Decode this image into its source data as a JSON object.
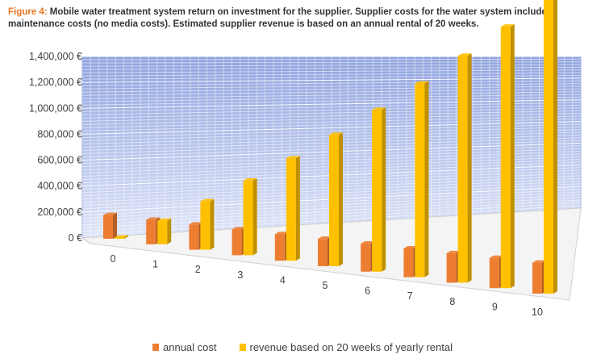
{
  "caption": {
    "figure_label": "Figure 4:",
    "text": "Mobile water treatment system return on investment for the supplier. Supplier costs for the water system include maintenance costs (no media costs). Estimated supplier revenue is based on an annual rental of 20 weeks."
  },
  "chart_data": {
    "type": "bar",
    "categories": [
      "0",
      "1",
      "2",
      "3",
      "4",
      "5",
      "6",
      "7",
      "8",
      "9",
      "10"
    ],
    "series": [
      {
        "name": "annual cost",
        "color": "#ed7d31",
        "values": [
          130000,
          130000,
          130000,
          130000,
          130000,
          130000,
          130000,
          130000,
          130000,
          130000,
          130000
        ]
      },
      {
        "name": "revenue based on 20 weeks of yearly rental",
        "color": "#ffc000",
        "values": [
          0,
          125000,
          250000,
          375000,
          500000,
          625000,
          750000,
          875000,
          1000000,
          1125000,
          1250000
        ]
      }
    ],
    "y_tick_labels": [
      "0 €",
      "200,000 €",
      "400,000 €",
      "600,000 €",
      "800,000 €",
      "1,000,000 €",
      "1,200,000 €",
      "1,400,000 €"
    ],
    "ylim": [
      0,
      1400000
    ],
    "grid": true,
    "legend_position": "bottom",
    "colors": {
      "back_wall": "#c3cef0",
      "back_wall_top": "#8fa2df",
      "grid": "#ffffff"
    }
  }
}
